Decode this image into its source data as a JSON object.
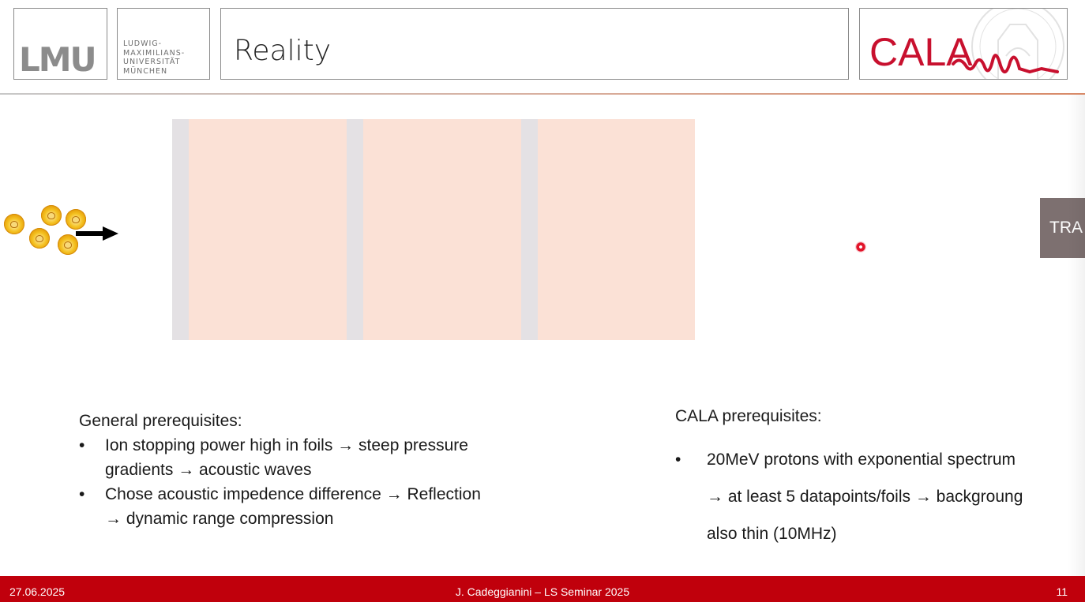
{
  "header": {
    "lmu_logo": "LMU",
    "university_lines": [
      "LUDWIG-",
      "MAXIMILIANS-",
      "UNIVERSITÄT",
      "MÜNCHEN"
    ],
    "title": "Reality",
    "cala_logo": "CALA",
    "cala_color": "#c8102e"
  },
  "diagram": {
    "particle_icon": "lion-face-icon",
    "particle_count": 5,
    "foil_color": "#fbe1d6",
    "gap_color": "#e4e1e4",
    "foil_count": 3
  },
  "side_tab": {
    "label": "TRA"
  },
  "general": {
    "heading": "General prerequisites:",
    "bullets": [
      {
        "line1": "Ion stopping power high in foils → steep pressure",
        "line2": "gradients → acoustic waves"
      },
      {
        "line1": "Chose acoustic impedence difference → Reflection",
        "line2": "→ dynamic range compression"
      }
    ]
  },
  "cala_prereq": {
    "heading": "CALA prerequisites:",
    "bullet": {
      "line1": "20MeV protons with exponential spectrum",
      "line2": "→ at least 5 datapoints/foils → backgroung",
      "line3": "also thin (10MHz)"
    }
  },
  "footer": {
    "date": "27.06.2025",
    "center": "J. Cadeggianini – LS Seminar 2025",
    "page": "11",
    "color": "#c0000c"
  }
}
